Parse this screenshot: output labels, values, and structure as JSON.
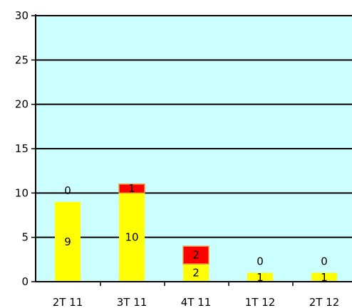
{
  "chart_data": {
    "type": "bar",
    "stacked": true,
    "categories": [
      "2T 11",
      "3T 11",
      "4T 11",
      "1T 12",
      "2T 12"
    ],
    "series": [
      {
        "values": [
          9,
          10,
          2,
          1,
          1
        ],
        "color": "#FFFF00"
      },
      {
        "values": [
          0,
          1,
          2,
          0,
          0
        ],
        "color": "#FF0000"
      }
    ],
    "ylim": [
      0,
      30
    ],
    "yticks": [
      "0",
      "5",
      "10",
      "15",
      "20",
      "25",
      "30"
    ],
    "grid": true,
    "legend": "none",
    "plot_background": "#CCFFFF",
    "title": "",
    "xlabel": "",
    "ylabel": ""
  }
}
